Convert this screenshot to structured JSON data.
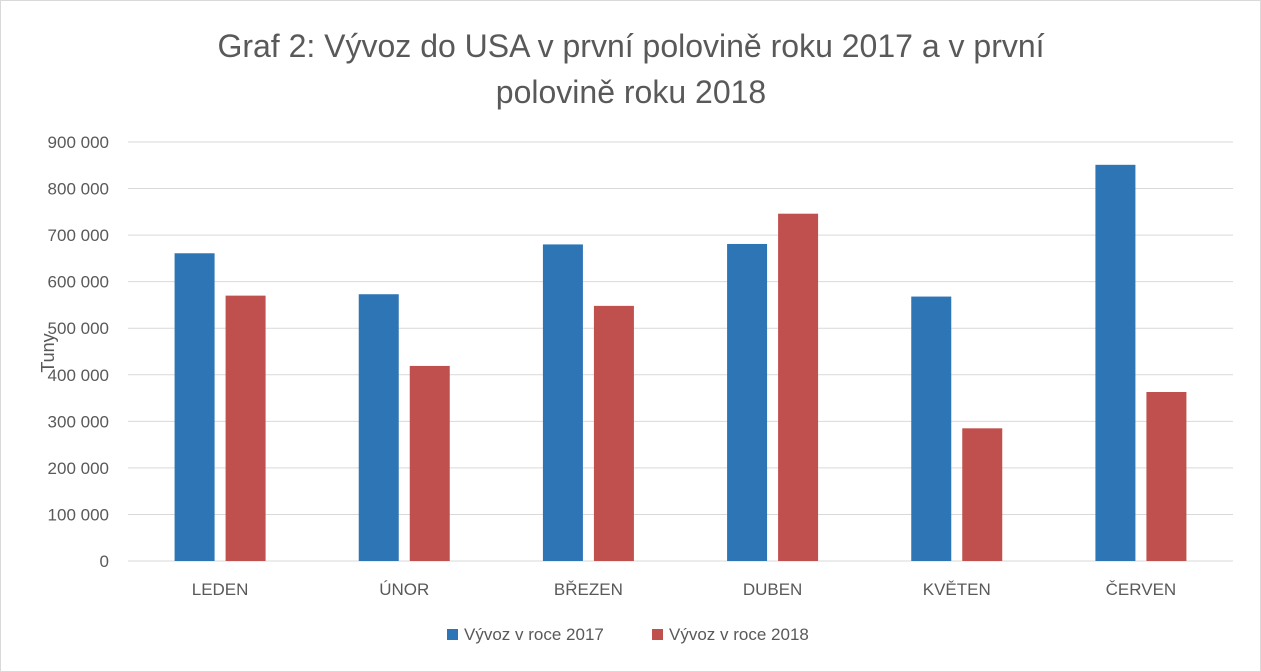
{
  "chart_data": {
    "type": "bar",
    "title": "Graf 2: Vývoz do USA v první polovině roku 2017 a v první polovině roku 2018",
    "title_lines": [
      "Graf 2: Vývoz do USA v první polovině roku 2017 a v první",
      "polovině roku 2018"
    ],
    "categories": [
      "LEDEN",
      "ÚNOR",
      "BŘEZEN",
      "DUBEN",
      "KVĚTEN",
      "ČERVEN"
    ],
    "series": [
      {
        "name": "Vývoz v roce 2017",
        "color": "#2e75b6",
        "values": [
          661000,
          573000,
          680000,
          681000,
          568000,
          851000
        ]
      },
      {
        "name": "Vývoz v roce 2018",
        "color": "#c0504d",
        "values": [
          570000,
          419000,
          548000,
          746000,
          285000,
          363000
        ]
      }
    ],
    "xlabel": "",
    "ylabel": "Tuny",
    "ylim": [
      0,
      900000
    ],
    "y_ticks": [
      0,
      100000,
      200000,
      300000,
      400000,
      500000,
      600000,
      700000,
      800000,
      900000
    ],
    "y_tick_labels": [
      "0",
      "100 000",
      "200 000",
      "300 000",
      "400 000",
      "500 000",
      "600 000",
      "700 000",
      "800 000",
      "900 000"
    ],
    "grid": true,
    "legend_position": "bottom"
  }
}
